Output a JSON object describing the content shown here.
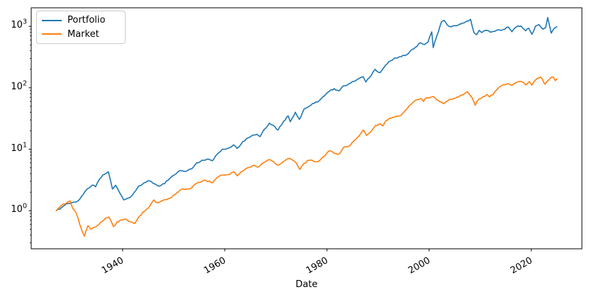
{
  "chart_data": {
    "type": "line",
    "title": "",
    "xlabel": "Date",
    "ylabel": "",
    "grid": false,
    "x_axis": {
      "ticks": [
        1940,
        1960,
        1980,
        2000,
        2020
      ],
      "lim": [
        1922.1,
        2029.9
      ]
    },
    "y_axis": {
      "scale": "log",
      "tick_exponents": [
        0,
        1,
        2,
        3
      ],
      "tick_base": "10",
      "lim": [
        0.24,
        2000
      ]
    },
    "legend": {
      "position": "upper left",
      "entries": [
        "Portfolio",
        "Market"
      ]
    },
    "render_hints": {
      "noise_log10_amplitude": 0.013,
      "line_width": 1.6,
      "spine_color": "#000000",
      "background": "#ffffff"
    },
    "series": [
      {
        "name": "Portfolio",
        "color": "#1f77b4",
        "points": [
          [
            1927.0,
            1.0
          ],
          [
            1928.0,
            1.12
          ],
          [
            1929.0,
            1.3
          ],
          [
            1929.8,
            1.32
          ],
          [
            1930.5,
            1.38
          ],
          [
            1931.3,
            1.45
          ],
          [
            1932.3,
            1.85
          ],
          [
            1933.2,
            2.3
          ],
          [
            1934.0,
            2.6
          ],
          [
            1934.7,
            2.45
          ],
          [
            1935.5,
            3.3
          ],
          [
            1936.4,
            3.9
          ],
          [
            1937.2,
            4.3
          ],
          [
            1938.0,
            2.25
          ],
          [
            1938.6,
            2.6
          ],
          [
            1939.5,
            1.9
          ],
          [
            1940.2,
            1.5
          ],
          [
            1941.0,
            1.6
          ],
          [
            1941.8,
            1.75
          ],
          [
            1942.3,
            2.0
          ],
          [
            1943.2,
            2.55
          ],
          [
            1944.2,
            2.85
          ],
          [
            1945.3,
            3.05
          ],
          [
            1946.2,
            2.75
          ],
          [
            1947.2,
            2.5
          ],
          [
            1948.2,
            2.75
          ],
          [
            1949.3,
            3.4
          ],
          [
            1950.5,
            4.0
          ],
          [
            1951.3,
            4.5
          ],
          [
            1952.5,
            4.4
          ],
          [
            1953.5,
            4.8
          ],
          [
            1954.5,
            6.0
          ],
          [
            1955.5,
            6.6
          ],
          [
            1956.5,
            6.9
          ],
          [
            1957.6,
            6.5
          ],
          [
            1958.5,
            8.3
          ],
          [
            1959.5,
            10.0
          ],
          [
            1960.5,
            10.3
          ],
          [
            1961.7,
            11.8
          ],
          [
            1962.4,
            10.3
          ],
          [
            1963.5,
            13.3
          ],
          [
            1964.5,
            15.3
          ],
          [
            1965.5,
            17.0
          ],
          [
            1966.3,
            17.5
          ],
          [
            1966.9,
            16.0
          ],
          [
            1967.6,
            20.5
          ],
          [
            1968.7,
            26.5
          ],
          [
            1969.5,
            24.5
          ],
          [
            1970.4,
            20.5
          ],
          [
            1971.5,
            28.5
          ],
          [
            1972.4,
            35.0
          ],
          [
            1972.8,
            28.0
          ],
          [
            1973.8,
            40.0
          ],
          [
            1974.6,
            30.5
          ],
          [
            1975.5,
            45.0
          ],
          [
            1976.5,
            50.0
          ],
          [
            1977.5,
            56.0
          ],
          [
            1978.5,
            62.0
          ],
          [
            1979.5,
            74.0
          ],
          [
            1980.5,
            88.0
          ],
          [
            1981.4,
            97.0
          ],
          [
            1982.3,
            89.0
          ],
          [
            1983.3,
            108
          ],
          [
            1984.3,
            116
          ],
          [
            1985.3,
            127
          ],
          [
            1986.3,
            142
          ],
          [
            1987.1,
            151
          ],
          [
            1987.6,
            124
          ],
          [
            1988.3,
            145
          ],
          [
            1989.4,
            200
          ],
          [
            1990.4,
            176
          ],
          [
            1991.5,
            235
          ],
          [
            1992.5,
            275
          ],
          [
            1993.5,
            305
          ],
          [
            1994.5,
            320
          ],
          [
            1995.3,
            335
          ],
          [
            1996.3,
            395
          ],
          [
            1997.3,
            455
          ],
          [
            1998.3,
            540
          ],
          [
            1999.1,
            505
          ],
          [
            1999.8,
            560
          ],
          [
            2000.5,
            810
          ],
          [
            2000.8,
            450
          ],
          [
            2001.5,
            700
          ],
          [
            2002.4,
            1180
          ],
          [
            2002.9,
            1250
          ],
          [
            2003.5,
            1060
          ],
          [
            2004.3,
            980
          ],
          [
            2005.2,
            1020
          ],
          [
            2005.9,
            1080
          ],
          [
            2006.8,
            1130
          ],
          [
            2007.7,
            1220
          ],
          [
            2008.1,
            1300
          ],
          [
            2008.8,
            780
          ],
          [
            2009.3,
            730
          ],
          [
            2009.8,
            860
          ],
          [
            2010.3,
            790
          ],
          [
            2011.0,
            860
          ],
          [
            2012.0,
            800
          ],
          [
            2013.0,
            840
          ],
          [
            2013.8,
            870
          ],
          [
            2014.5,
            890
          ],
          [
            2015.5,
            975
          ],
          [
            2016.2,
            815
          ],
          [
            2017.0,
            970
          ],
          [
            2018.0,
            1010
          ],
          [
            2018.9,
            845
          ],
          [
            2019.5,
            930
          ],
          [
            2020.1,
            740
          ],
          [
            2020.8,
            1000
          ],
          [
            2021.5,
            1070
          ],
          [
            2022.3,
            900
          ],
          [
            2022.8,
            950
          ],
          [
            2023.2,
            1390
          ],
          [
            2023.9,
            775
          ],
          [
            2024.5,
            930
          ],
          [
            2025.0,
            985
          ]
        ]
      },
      {
        "name": "Market",
        "color": "#ff7f0e",
        "points": [
          [
            1927.0,
            1.0
          ],
          [
            1928.0,
            1.22
          ],
          [
            1929.2,
            1.38
          ],
          [
            1929.7,
            1.45
          ],
          [
            1930.2,
            1.1
          ],
          [
            1930.9,
            0.92
          ],
          [
            1931.6,
            0.6
          ],
          [
            1932.0,
            0.48
          ],
          [
            1932.5,
            0.385
          ],
          [
            1933.2,
            0.57
          ],
          [
            1933.8,
            0.5
          ],
          [
            1934.5,
            0.54
          ],
          [
            1935.4,
            0.6
          ],
          [
            1936.4,
            0.72
          ],
          [
            1937.3,
            0.79
          ],
          [
            1938.2,
            0.55
          ],
          [
            1938.9,
            0.66
          ],
          [
            1939.8,
            0.7
          ],
          [
            1940.6,
            0.73
          ],
          [
            1941.5,
            0.66
          ],
          [
            1942.3,
            0.62
          ],
          [
            1943.3,
            0.82
          ],
          [
            1944.3,
            0.98
          ],
          [
            1945.3,
            1.18
          ],
          [
            1946.1,
            1.5
          ],
          [
            1946.8,
            1.34
          ],
          [
            1947.5,
            1.42
          ],
          [
            1948.3,
            1.52
          ],
          [
            1949.3,
            1.6
          ],
          [
            1950.3,
            1.85
          ],
          [
            1951.2,
            2.15
          ],
          [
            1952.5,
            2.25
          ],
          [
            1953.5,
            2.35
          ],
          [
            1954.5,
            2.8
          ],
          [
            1955.5,
            3.0
          ],
          [
            1956.3,
            3.1
          ],
          [
            1957.6,
            2.85
          ],
          [
            1958.5,
            3.5
          ],
          [
            1959.4,
            3.8
          ],
          [
            1960.5,
            3.85
          ],
          [
            1961.7,
            4.3
          ],
          [
            1962.4,
            3.7
          ],
          [
            1963.5,
            4.4
          ],
          [
            1964.5,
            5.0
          ],
          [
            1965.8,
            5.5
          ],
          [
            1966.5,
            5.1
          ],
          [
            1967.5,
            6.0
          ],
          [
            1968.7,
            6.8
          ],
          [
            1969.6,
            6.2
          ],
          [
            1970.4,
            5.5
          ],
          [
            1971.5,
            6.3
          ],
          [
            1972.7,
            7.1
          ],
          [
            1973.8,
            6.2
          ],
          [
            1974.7,
            4.7
          ],
          [
            1975.5,
            5.9
          ],
          [
            1976.5,
            6.6
          ],
          [
            1977.5,
            6.3
          ],
          [
            1978.4,
            6.4
          ],
          [
            1979.3,
            7.6
          ],
          [
            1980.4,
            9.4
          ],
          [
            1981.4,
            8.6
          ],
          [
            1982.4,
            8.4
          ],
          [
            1983.3,
            10.8
          ],
          [
            1984.3,
            11.2
          ],
          [
            1985.2,
            13.5
          ],
          [
            1986.2,
            16.2
          ],
          [
            1987.1,
            20.5
          ],
          [
            1987.7,
            16.8
          ],
          [
            1988.5,
            19.0
          ],
          [
            1989.5,
            24.5
          ],
          [
            1990.4,
            26.0
          ],
          [
            1990.9,
            24.0
          ],
          [
            1991.5,
            29.0
          ],
          [
            1992.5,
            32.0
          ],
          [
            1993.6,
            34.5
          ],
          [
            1994.5,
            35.5
          ],
          [
            1995.7,
            46.0
          ],
          [
            1996.5,
            54.0
          ],
          [
            1997.3,
            62.0
          ],
          [
            1998.4,
            67.0
          ],
          [
            1998.9,
            60.0
          ],
          [
            1999.5,
            69.0
          ],
          [
            2000.7,
            72.0
          ],
          [
            2001.8,
            62.0
          ],
          [
            2002.8,
            55.0
          ],
          [
            2003.8,
            63.0
          ],
          [
            2004.8,
            67.0
          ],
          [
            2005.8,
            71.0
          ],
          [
            2006.8,
            79.0
          ],
          [
            2007.5,
            86.0
          ],
          [
            2008.4,
            69.0
          ],
          [
            2009.0,
            52.0
          ],
          [
            2009.8,
            66.0
          ],
          [
            2010.5,
            71.0
          ],
          [
            2011.3,
            78.0
          ],
          [
            2011.8,
            71.0
          ],
          [
            2012.5,
            77.0
          ],
          [
            2013.2,
            92.0
          ],
          [
            2014.5,
            112
          ],
          [
            2015.5,
            116
          ],
          [
            2016.2,
            110
          ],
          [
            2017.0,
            121
          ],
          [
            2018.0,
            127
          ],
          [
            2018.9,
            111
          ],
          [
            2019.6,
            126
          ],
          [
            2020.1,
            110
          ],
          [
            2020.9,
            136
          ],
          [
            2021.8,
            150
          ],
          [
            2022.7,
            114
          ],
          [
            2023.7,
            143
          ],
          [
            2024.3,
            149
          ],
          [
            2024.7,
            131
          ],
          [
            2025.0,
            139
          ]
        ]
      }
    ]
  }
}
